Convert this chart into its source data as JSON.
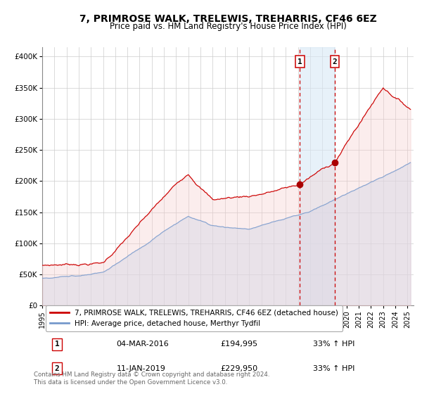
{
  "title": "7, PRIMROSE WALK, TRELEWIS, TREHARRIS, CF46 6EZ",
  "subtitle": "Price paid vs. HM Land Registry's House Price Index (HPI)",
  "ylabel_ticks": [
    "£0",
    "£50K",
    "£100K",
    "£150K",
    "£200K",
    "£250K",
    "£300K",
    "£350K",
    "£400K"
  ],
  "ytick_vals": [
    0,
    50000,
    100000,
    150000,
    200000,
    250000,
    300000,
    350000,
    400000
  ],
  "ylim": [
    0,
    415000
  ],
  "xlim_start": 1995.0,
  "xlim_end": 2025.5,
  "xtick_years": [
    1995,
    1996,
    1997,
    1998,
    1999,
    2000,
    2001,
    2002,
    2003,
    2004,
    2005,
    2006,
    2007,
    2008,
    2009,
    2010,
    2011,
    2012,
    2013,
    2014,
    2015,
    2016,
    2017,
    2018,
    2019,
    2020,
    2021,
    2022,
    2023,
    2024,
    2025
  ],
  "red_line_color": "#cc0000",
  "blue_line_color": "#7799cc",
  "shade_color": "#d8e8f5",
  "marker_color": "#aa0000",
  "vline1_x": 2016.17,
  "vline2_x": 2019.03,
  "marker1_x": 2016.17,
  "marker1_y": 194995,
  "marker2_x": 2019.03,
  "marker2_y": 229950,
  "legend_red_label": "7, PRIMROSE WALK, TRELEWIS, TREHARRIS, CF46 6EZ (detached house)",
  "legend_blue_label": "HPI: Average price, detached house, Merthyr Tydfil",
  "table_row1": [
    "1",
    "04-MAR-2016",
    "£194,995",
    "33% ↑ HPI"
  ],
  "table_row2": [
    "2",
    "11-JAN-2019",
    "£229,950",
    "33% ↑ HPI"
  ],
  "footer1": "Contains HM Land Registry data © Crown copyright and database right 2024.",
  "footer2": "This data is licensed under the Open Government Licence v3.0.",
  "bg_color": "#ffffff",
  "grid_color": "#cccccc"
}
